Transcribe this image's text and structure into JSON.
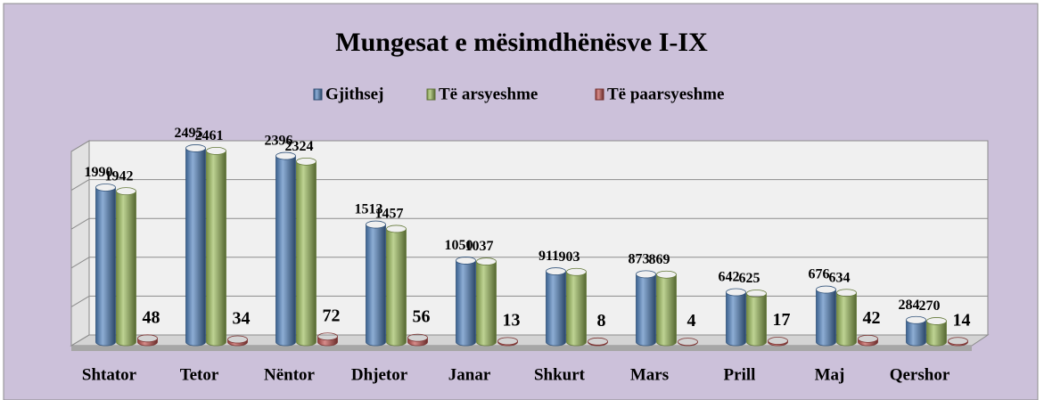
{
  "chart_data": {
    "type": "bar",
    "title": "Mungesat e mësimdhënësve I-IX",
    "categories": [
      "Shtator",
      "Tetor",
      "Nëntor",
      "Dhjetor",
      "Janar",
      "Shkurt",
      "Mars",
      "Prill",
      "Maj",
      "Qershor"
    ],
    "series": [
      {
        "name": "Gjithsej",
        "color": "#4f81bd",
        "values": [
          1990,
          2495,
          2396,
          1513,
          1050,
          911,
          873,
          642,
          676,
          284
        ]
      },
      {
        "name": "Të arsyeshme",
        "color": "#9bbb59",
        "values": [
          1942,
          2461,
          2324,
          1457,
          1037,
          903,
          869,
          625,
          634,
          270
        ]
      },
      {
        "name": "Të paarsyeshme",
        "color": "#c0504d",
        "values": [
          48,
          34,
          72,
          56,
          13,
          8,
          4,
          17,
          42,
          14
        ]
      }
    ],
    "ylim": [
      0,
      2500
    ],
    "yticks": [
      0,
      500,
      1000,
      1500,
      2000,
      2500
    ],
    "grid": true,
    "legend": "top"
  }
}
